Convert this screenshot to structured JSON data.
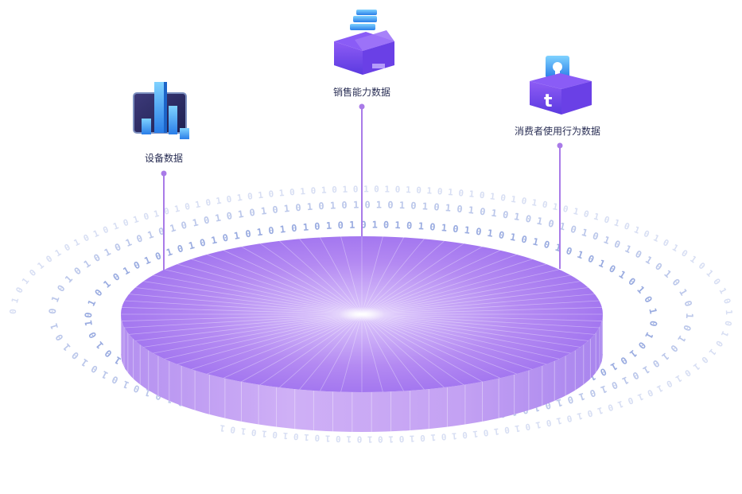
{
  "nodes": {
    "device": {
      "label": "设备数据",
      "icon": "bar-chart-monitor-icon"
    },
    "sales": {
      "label": "销售能力数据",
      "icon": "box-with-coins-icon"
    },
    "consumer": {
      "label": "消费者使用行为数据",
      "icon": "box-with-bulb-icon"
    }
  },
  "binary_ring_text": "0 1 0 1 0 1 0 1 0 1 0 1 0 1 0 1 0 1 0 1 0 1 0 1 0 1 0 1 0 1 0 1 0 1 0 1 0 1 0 1 0 1 0 1 0 1 0 1 0 1 0 1 0 1 0 1 0 1 0 1 0 1 0 1",
  "colors": {
    "disk_top_light": "#c9a4f4",
    "disk_top_dark": "#9b6ef0",
    "disk_side": "#c3a0f2",
    "connector": "#a97be8",
    "binary_digits": "#8ea2dd",
    "icon_purple": "#7a4cf0",
    "icon_blue": "#3aa8f5"
  }
}
